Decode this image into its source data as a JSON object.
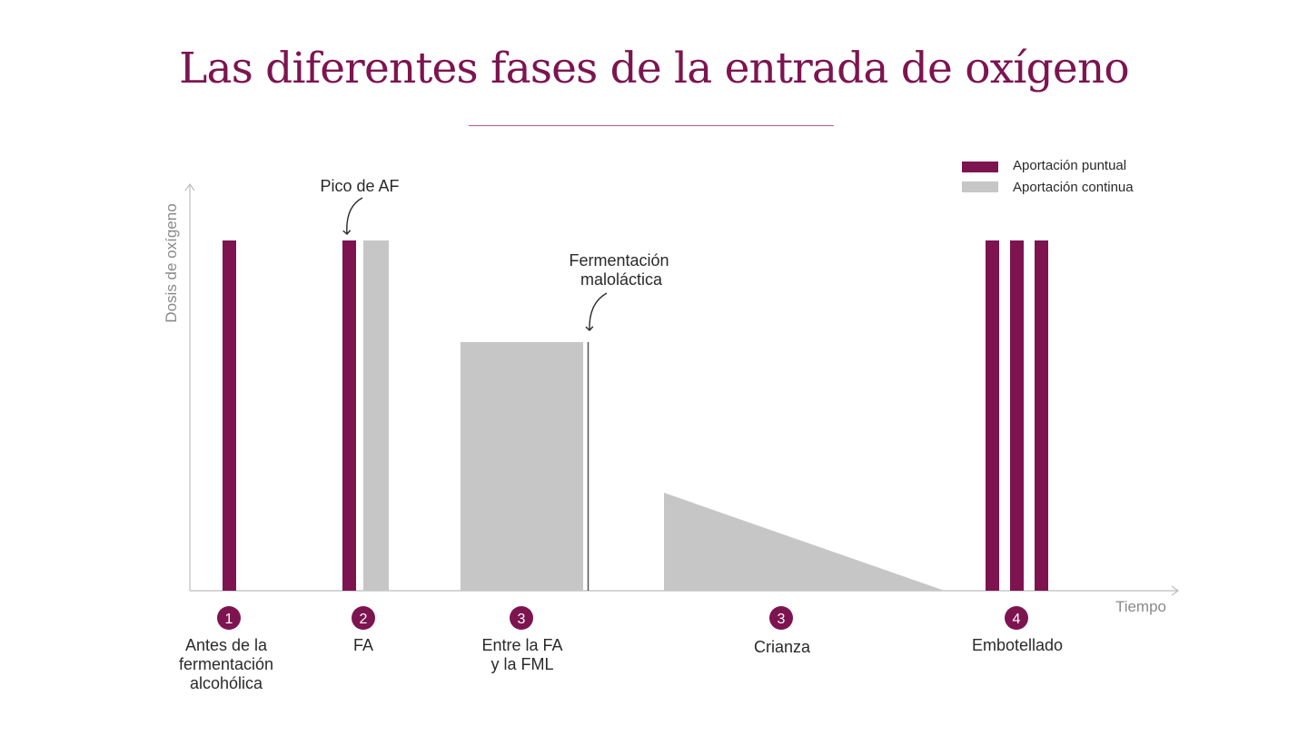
{
  "title": "Las diferentes fases de la entrada de oxígeno",
  "colors": {
    "accent": "#7d1450",
    "continuous": "#c6c6c6",
    "axis": "#bdbdbd",
    "text": "#2a2a2a"
  },
  "chart_data": {
    "type": "bar",
    "xlabel": "Tiempo",
    "ylabel": "Dosis de oxígeno",
    "grid": false,
    "legend_position": "top-right",
    "legend": [
      {
        "name": "Aportación puntual",
        "color": "#7d1450"
      },
      {
        "name": "Aportación continua",
        "color": "#c6c6c6"
      }
    ],
    "annotations": [
      {
        "text": "Pico de AF",
        "target": "FA"
      },
      {
        "text": "Fermentación\nmaloláctica",
        "target": "Entre la FA y la FML"
      }
    ],
    "stages": [
      {
        "number": "1",
        "label": "Antes de la\nfermentación\nalcohólica"
      },
      {
        "number": "2",
        "label": "FA"
      },
      {
        "number": "3",
        "label": "Entre la FA\ny la FML"
      },
      {
        "number": "3",
        "label": "Crianza"
      },
      {
        "number": "4",
        "label": "Embotellado"
      }
    ]
  }
}
